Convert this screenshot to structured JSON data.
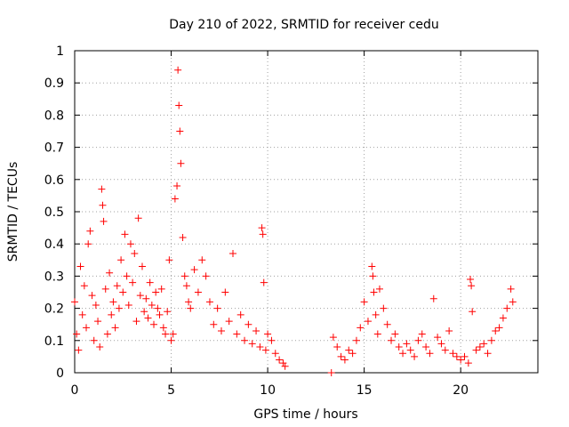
{
  "chart_data": {
    "type": "scatter",
    "title": "Day 210 of 2022, SRMTID for receiver cedu",
    "xlabel": "GPS time / hours",
    "ylabel": "SRMTID / TECUs",
    "xlim": [
      0,
      24
    ],
    "ylim": [
      0,
      1
    ],
    "xticks": [
      0,
      5,
      10,
      15,
      20
    ],
    "xtick_labels": [
      "0",
      "5",
      "10",
      "15",
      "20"
    ],
    "yticks": [
      0,
      0.1,
      0.2,
      0.3,
      0.4,
      0.5,
      0.6,
      0.7,
      0.8,
      0.9,
      1
    ],
    "ytick_labels": [
      "0",
      "0.1",
      "0.2",
      "0.3",
      "0.4",
      "0.5",
      "0.6",
      "0.7",
      "0.8",
      "0.9",
      "1"
    ],
    "grid": true,
    "marker": "+",
    "series": [
      {
        "name": "SRMTID",
        "color": "#ff0000",
        "x": [
          0.0,
          0.1,
          0.2,
          0.3,
          0.4,
          0.5,
          0.6,
          0.7,
          0.8,
          0.9,
          1.0,
          1.1,
          1.2,
          1.3,
          1.4,
          1.45,
          1.5,
          1.6,
          1.7,
          1.8,
          1.9,
          2.0,
          2.1,
          2.2,
          2.3,
          2.4,
          2.5,
          2.6,
          2.7,
          2.8,
          2.9,
          3.0,
          3.1,
          3.2,
          3.3,
          3.4,
          3.5,
          3.6,
          3.7,
          3.8,
          3.9,
          4.0,
          4.1,
          4.2,
          4.3,
          4.4,
          4.5,
          4.6,
          4.7,
          4.8,
          4.9,
          5.0,
          5.1,
          5.2,
          5.3,
          5.35,
          5.4,
          5.45,
          5.5,
          5.6,
          5.7,
          5.8,
          5.9,
          6.0,
          6.2,
          6.4,
          6.6,
          6.8,
          7.0,
          7.2,
          7.4,
          7.6,
          7.8,
          8.0,
          8.2,
          8.4,
          8.6,
          8.8,
          9.0,
          9.2,
          9.4,
          9.6,
          9.7,
          9.75,
          9.8,
          9.9,
          10.0,
          10.2,
          10.4,
          10.6,
          10.8,
          10.9,
          13.3,
          13.4,
          13.6,
          13.8,
          14.0,
          14.2,
          14.4,
          14.6,
          14.8,
          15.0,
          15.2,
          15.4,
          15.45,
          15.5,
          15.6,
          15.7,
          15.8,
          16.0,
          16.2,
          16.4,
          16.6,
          16.8,
          17.0,
          17.2,
          17.4,
          17.6,
          17.8,
          18.0,
          18.2,
          18.4,
          18.6,
          18.8,
          19.0,
          19.2,
          19.4,
          19.6,
          19.8,
          20.0,
          20.2,
          20.4,
          20.5,
          20.55,
          20.6,
          20.8,
          21.0,
          21.2,
          21.4,
          21.6,
          21.8,
          22.0,
          22.2,
          22.4,
          22.6,
          22.7
        ],
        "y": [
          0.22,
          0.12,
          0.07,
          0.33,
          0.18,
          0.27,
          0.14,
          0.4,
          0.44,
          0.24,
          0.1,
          0.21,
          0.16,
          0.08,
          0.57,
          0.52,
          0.47,
          0.26,
          0.12,
          0.31,
          0.18,
          0.22,
          0.14,
          0.27,
          0.2,
          0.35,
          0.25,
          0.43,
          0.3,
          0.21,
          0.4,
          0.28,
          0.37,
          0.16,
          0.48,
          0.24,
          0.33,
          0.19,
          0.23,
          0.17,
          0.28,
          0.21,
          0.15,
          0.25,
          0.2,
          0.18,
          0.26,
          0.14,
          0.12,
          0.19,
          0.35,
          0.1,
          0.12,
          0.54,
          0.58,
          0.94,
          0.83,
          0.75,
          0.65,
          0.42,
          0.3,
          0.27,
          0.22,
          0.2,
          0.32,
          0.25,
          0.35,
          0.3,
          0.22,
          0.15,
          0.2,
          0.13,
          0.25,
          0.16,
          0.37,
          0.12,
          0.18,
          0.1,
          0.15,
          0.09,
          0.13,
          0.08,
          0.45,
          0.43,
          0.28,
          0.07,
          0.12,
          0.1,
          0.06,
          0.04,
          0.03,
          0.02,
          0.0,
          0.11,
          0.08,
          0.05,
          0.04,
          0.07,
          0.06,
          0.1,
          0.14,
          0.22,
          0.16,
          0.33,
          0.3,
          0.25,
          0.18,
          0.12,
          0.26,
          0.2,
          0.15,
          0.1,
          0.12,
          0.08,
          0.06,
          0.09,
          0.07,
          0.05,
          0.1,
          0.12,
          0.08,
          0.06,
          0.23,
          0.11,
          0.09,
          0.07,
          0.13,
          0.06,
          0.05,
          0.04,
          0.05,
          0.03,
          0.29,
          0.27,
          0.19,
          0.07,
          0.08,
          0.09,
          0.06,
          0.1,
          0.13,
          0.14,
          0.17,
          0.2,
          0.26,
          0.22
        ]
      }
    ]
  }
}
